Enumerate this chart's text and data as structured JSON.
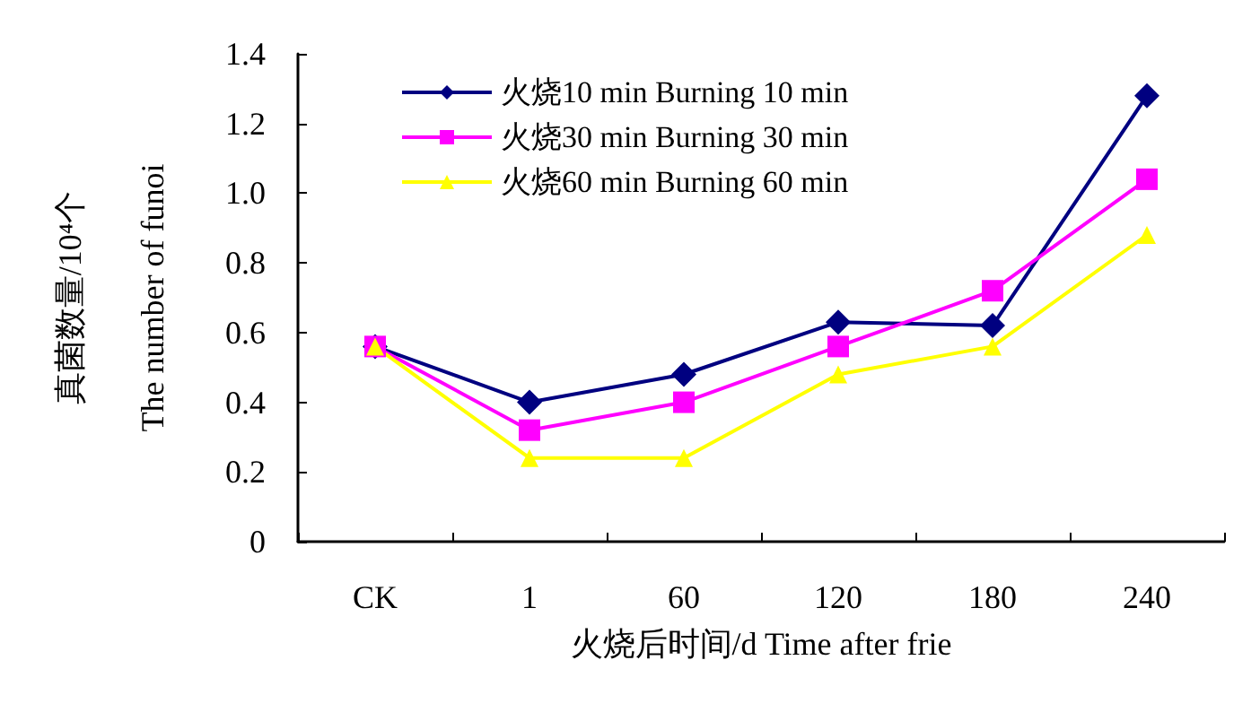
{
  "chart_data": {
    "type": "line",
    "xlabel": "火烧后时间/d Time after frie",
    "ylabel": "真菌数量/10⁴个\nThe number of funoi",
    "categories": [
      "CK",
      "1",
      "60",
      "120",
      "180",
      "240"
    ],
    "series": [
      {
        "name": "火烧10 min Burning 10 min",
        "color": "#000080",
        "marker": "diamond",
        "values": [
          0.56,
          0.4,
          0.48,
          0.63,
          0.62,
          1.28
        ]
      },
      {
        "name": "火烧30 min Burning 30 min",
        "color": "#ff00ff",
        "marker": "square",
        "values": [
          0.56,
          0.32,
          0.4,
          0.56,
          0.72,
          1.04
        ]
      },
      {
        "name": "火烧60 min Burning 60 min",
        "color": "#ffff00",
        "marker": "triangle",
        "values": [
          0.56,
          0.24,
          0.24,
          0.48,
          0.56,
          0.88
        ]
      }
    ],
    "ylim": [
      0,
      1.4
    ],
    "yticks": [
      0,
      0.2,
      0.4,
      0.6,
      0.8,
      {
        "value": 1,
        "label": "1.0"
      },
      1.2,
      1.4
    ],
    "grid": false,
    "legend": "top left"
  }
}
